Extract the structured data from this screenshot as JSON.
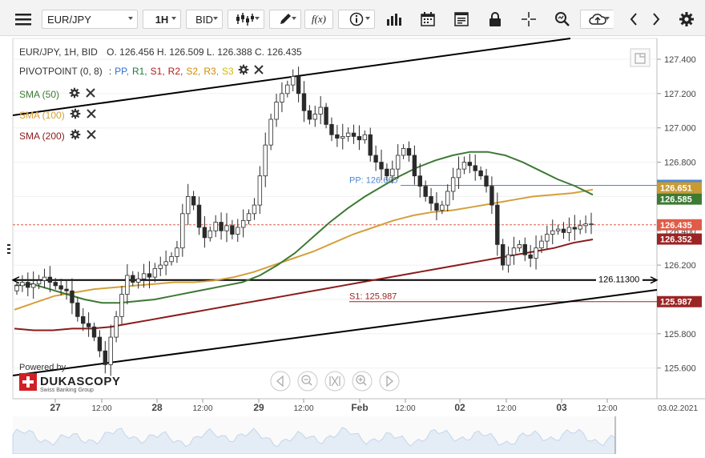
{
  "toolbar": {
    "pair": "EUR/JPY",
    "timeframe": "1H",
    "price_type": "BID",
    "fx_label": "f(x)"
  },
  "legend": {
    "header": "EUR/JPY, 1H, BID",
    "ohlc": "O. 126.456 H. 126.509 L. 126.388 C. 126.435",
    "pivot_title": "PIVOTPOINT (0, 8)",
    "pivot_sep": ":",
    "pivot_levels": [
      {
        "label": "PP,",
        "color": "#2f6fd1"
      },
      {
        "label": "R1,",
        "color": "#1f7a3a"
      },
      {
        "label": "S1,",
        "color": "#b31b1b"
      },
      {
        "label": "R2,",
        "color": "#b31b1b"
      },
      {
        "label": "S2,",
        "color": "#d38b00"
      },
      {
        "label": "R3,",
        "color": "#d38b00"
      },
      {
        "label": "S3",
        "color": "#d3b800"
      }
    ],
    "sma": [
      {
        "label": "SMA (50)",
        "color": "#3d7a34"
      },
      {
        "label": "SMA (100)",
        "color": "#d4a03a"
      },
      {
        "label": "SMA (200)",
        "color": "#8b1a1a"
      }
    ]
  },
  "branding": {
    "powered_by": "Powered by",
    "name": "DUKASCOPY",
    "sub": "Swiss Banking Group"
  },
  "chart_data": {
    "type": "candlestick",
    "instrument": "EUR/JPY",
    "timeframe": "1H",
    "ylim": [
      125.48,
      127.5
    ],
    "y_ticks": [
      "127.400",
      "127.200",
      "127.000",
      "126.800",
      "126.600",
      "126.400",
      "126.200",
      "126.000",
      "125.800",
      "125.600"
    ],
    "x_ticks": [
      {
        "label": "27",
        "bold": true
      },
      {
        "label": "12:00",
        "bold": false
      },
      {
        "label": "28",
        "bold": true
      },
      {
        "label": "12:00",
        "bold": false
      },
      {
        "label": "29",
        "bold": true
      },
      {
        "label": "12:00",
        "bold": false
      },
      {
        "label": "Feb",
        "bold": true
      },
      {
        "label": "12:00",
        "bold": false
      },
      {
        "label": "02",
        "bold": true
      },
      {
        "label": "12:00",
        "bold": false
      },
      {
        "label": "03",
        "bold": true
      },
      {
        "label": "12:00",
        "bold": false
      }
    ],
    "date_label": "03.02.2021",
    "close_path": [
      126.08,
      126.1,
      126.07,
      126.09,
      126.11,
      126.13,
      126.1,
      126.08,
      126.06,
      126.05,
      125.98,
      125.9,
      125.86,
      125.84,
      125.78,
      125.7,
      125.62,
      125.78,
      125.9,
      126.03,
      126.14,
      126.1,
      126.12,
      126.15,
      126.13,
      126.18,
      126.2,
      126.22,
      126.25,
      126.3,
      126.5,
      126.6,
      126.55,
      126.42,
      126.36,
      126.4,
      126.45,
      126.4,
      126.43,
      126.38,
      126.42,
      126.46,
      126.5,
      126.55,
      126.72,
      126.9,
      127.05,
      127.15,
      127.2,
      127.25,
      127.3,
      127.2,
      127.1,
      127.05,
      127.08,
      127.12,
      127.02,
      126.96,
      126.94,
      126.95,
      126.97,
      126.95,
      126.93,
      126.96,
      126.84,
      126.8,
      126.76,
      126.72,
      126.76,
      126.84,
      126.88,
      126.84,
      126.72,
      126.66,
      126.6,
      126.56,
      126.52,
      126.55,
      126.63,
      126.71,
      126.76,
      126.8,
      126.78,
      126.75,
      126.72,
      126.66,
      126.55,
      126.32,
      126.2,
      126.26,
      126.3,
      126.32,
      126.26,
      126.24,
      126.3,
      126.34,
      126.38,
      126.4,
      126.41,
      126.39,
      126.42,
      126.41,
      126.43,
      126.44,
      126.44
    ],
    "sma_50": [
      126.08,
      126.09,
      126.06,
      126.03,
      126.0,
      125.98,
      125.98,
      125.99,
      126.0,
      126.02,
      126.04,
      126.06,
      126.08,
      126.1,
      126.14,
      126.2,
      126.27,
      126.36,
      126.45,
      126.53,
      126.6,
      126.66,
      126.72,
      126.77,
      126.81,
      126.84,
      126.86,
      126.86,
      126.84,
      126.8,
      126.75,
      126.7,
      126.66,
      126.61
    ],
    "sma_100": [
      125.94,
      125.98,
      126.02,
      126.04,
      126.06,
      126.07,
      126.08,
      126.09,
      126.1,
      126.1,
      126.11,
      126.13,
      126.16,
      126.2,
      126.24,
      126.28,
      126.33,
      126.38,
      126.42,
      126.46,
      126.49,
      126.51,
      126.52,
      126.54,
      126.56,
      126.58,
      126.6,
      126.61,
      126.62,
      126.64
    ],
    "sma_200": [
      125.83,
      125.82,
      125.82,
      125.83,
      125.83,
      125.84,
      125.86,
      125.88,
      125.9,
      125.92,
      125.94,
      125.96,
      125.98,
      126.0,
      126.02,
      126.04,
      126.06,
      126.08,
      126.1,
      126.12,
      126.14,
      126.16,
      126.18,
      126.2,
      126.22,
      126.24,
      126.26,
      126.28,
      126.3,
      126.33,
      126.35
    ],
    "pivot_lines": [
      {
        "label": "PP: 126.665",
        "value": 126.665,
        "color": "#4a88d6",
        "badge": "126.665"
      },
      {
        "label": "S1: 125.987",
        "value": 125.987,
        "color": "#9b2424",
        "badge": "125.987"
      }
    ],
    "horizontal_line": {
      "label": "126.11300",
      "value": 126.113
    },
    "price_badges": [
      {
        "label": "126.651",
        "value": 126.651,
        "color": "#c89a34"
      },
      {
        "label": "126.585",
        "value": 126.585,
        "color": "#3d7a34"
      },
      {
        "label": "126.435",
        "value": 126.435,
        "color": "#e05c48",
        "current": true
      },
      {
        "label": "126.352",
        "value": 126.352,
        "color": "#9b2424"
      }
    ],
    "trend_lines": "two rising black channel lines"
  }
}
